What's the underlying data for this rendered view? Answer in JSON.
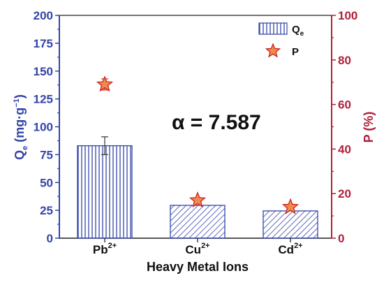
{
  "chart_data": {
    "type": "bar",
    "categories": [
      "Pb",
      "Cu",
      "Cd"
    ],
    "category_superscripts": [
      "2+",
      "2+",
      "2+"
    ],
    "xlabel": "Heavy Metal Ions",
    "ylabel": {
      "base": "Q",
      "sub": "e",
      "units": "(mg·g",
      "exp": "−1",
      "close": ")"
    },
    "y2label": "P (%)",
    "ylim": [
      0,
      200
    ],
    "y2lim": [
      0,
      100
    ],
    "yticks": [
      0,
      25,
      50,
      75,
      100,
      125,
      150,
      175,
      200
    ],
    "y2ticks": [
      0,
      20,
      40,
      60,
      80,
      100
    ],
    "series": [
      {
        "name": "Qe",
        "legend_base": "Q",
        "legend_sub": "e",
        "type": "bar",
        "axis": "left",
        "values": [
          83,
          29.5,
          24.5
        ],
        "errors": [
          8,
          0,
          0
        ]
      },
      {
        "name": "P",
        "legend_base": "P",
        "type": "scatter",
        "marker": "star",
        "axis": "right",
        "values": [
          69,
          17,
          14
        ],
        "errors": [
          2.5,
          0.8,
          0.8
        ]
      }
    ],
    "annotation": "α = 7.587",
    "legend_position": "top-right",
    "grid": false,
    "colors": {
      "left_axis": "#3344a8",
      "right_axis": "#b0203a",
      "bar": "#3344a8",
      "star_fill": "#f08a4b",
      "star_edge": "#cc2222"
    }
  }
}
